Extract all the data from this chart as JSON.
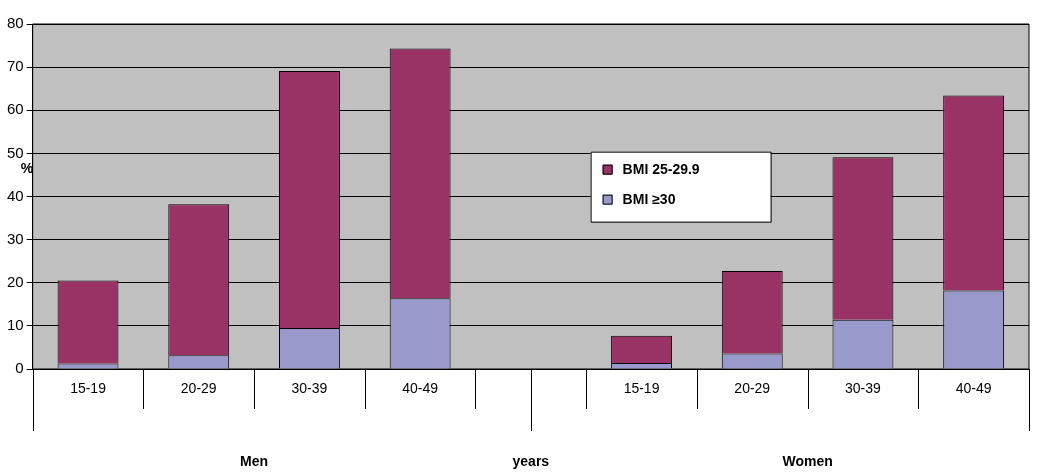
{
  "chart_data": {
    "type": "bar",
    "stacked": true,
    "xlabel": "years",
    "ylabel": "%",
    "categories": [
      "15-19",
      "20-29",
      "30-39",
      "40-49",
      null,
      "15-19",
      "20-29",
      "30-39",
      "40-49"
    ],
    "series": [
      {
        "name": "BMI ≥30",
        "color": "#9999cc",
        "values": [
          1.3,
          3.2,
          9.5,
          16.4,
          null,
          1.4,
          3.6,
          11.4,
          18.2
        ]
      },
      {
        "name": "BMI 25-29.9",
        "color": "#993366",
        "values": [
          19.2,
          35,
          59.6,
          57.9,
          null,
          6.3,
          19.1,
          37.7,
          45.2
        ]
      }
    ],
    "ylim": [
      0,
      80
    ],
    "yticks": [
      0,
      10,
      20,
      30,
      40,
      50,
      60,
      70,
      80
    ],
    "grid": "y",
    "legend": "center",
    "annotations": [
      "Men",
      "Women"
    ]
  }
}
